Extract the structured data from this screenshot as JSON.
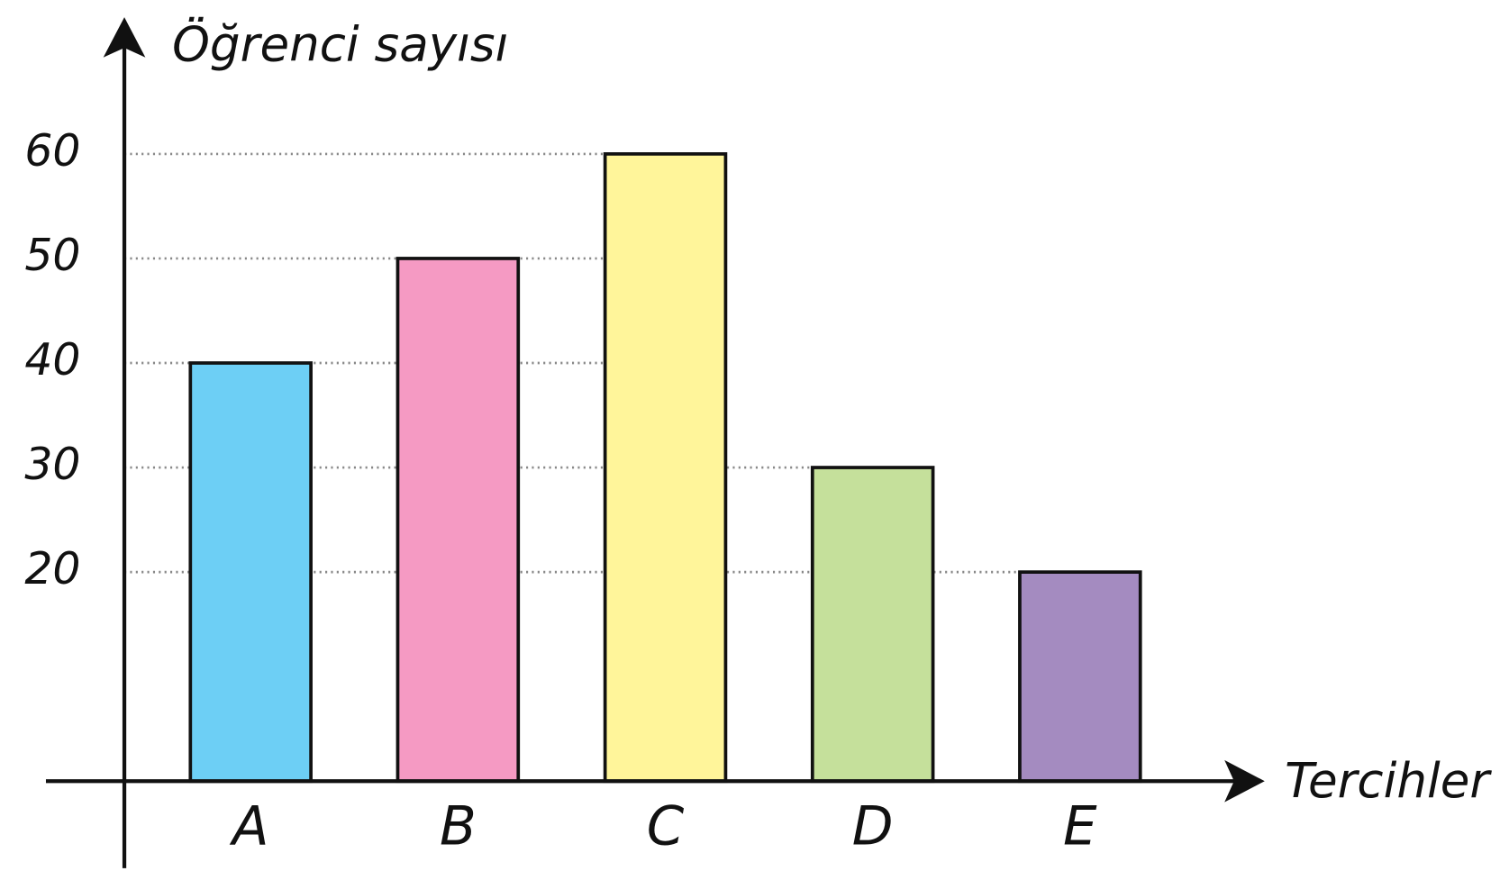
{
  "chart_data": {
    "type": "bar",
    "y_label": "Öğrenci sayısı",
    "x_label": "Tercihler",
    "categories": [
      "A",
      "B",
      "C",
      "D",
      "E"
    ],
    "values": [
      40,
      50,
      60,
      30,
      20
    ],
    "colors": [
      "#6dcff5",
      "#f59ac3",
      "#fff59a",
      "#c5e09b",
      "#a48bc0"
    ],
    "ylim": [
      0,
      60
    ],
    "yticks": [
      20,
      30,
      40,
      50,
      60
    ],
    "grid": true
  }
}
